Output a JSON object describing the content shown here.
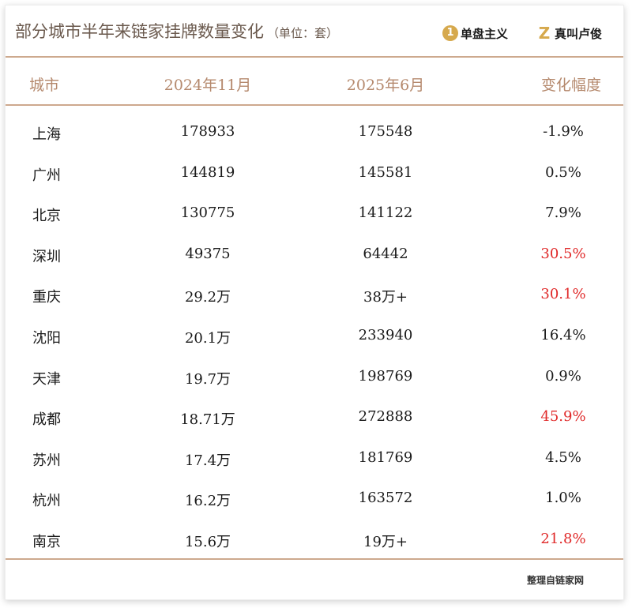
{
  "title": "部分城市半年来链家挂牌数量变化",
  "unit": "（单位：套）",
  "brands": [
    {
      "logo": "1",
      "name": "单盘主义",
      "icon": "single-plate-logo-icon"
    },
    {
      "logo": "Z",
      "name": "真叫卢俊",
      "icon": "z-logo-icon"
    }
  ],
  "columns": [
    "城市",
    "2024年11月",
    "2025年6月",
    "变化幅度"
  ],
  "highlight_color": "#e02a2a",
  "accent_color": "#cda98e",
  "rows": [
    {
      "city": "上海",
      "nov2024": "178933",
      "jun2025": "175548",
      "change": "-1.9%",
      "highlight": false
    },
    {
      "city": "广州",
      "nov2024": "144819",
      "jun2025": "145581",
      "change": "0.5%",
      "highlight": false
    },
    {
      "city": "北京",
      "nov2024": "130775",
      "jun2025": "141122",
      "change": "7.9%",
      "highlight": false
    },
    {
      "city": "深圳",
      "nov2024": "49375",
      "jun2025": "64442",
      "change": "30.5%",
      "highlight": true
    },
    {
      "city": "重庆",
      "nov2024": "29.2万",
      "jun2025": "38万+",
      "change": "30.1%",
      "highlight": true
    },
    {
      "city": "沈阳",
      "nov2024": "20.1万",
      "jun2025": "233940",
      "change": "16.4%",
      "highlight": false
    },
    {
      "city": "天津",
      "nov2024": "19.7万",
      "jun2025": "198769",
      "change": "0.9%",
      "highlight": false
    },
    {
      "city": "成都",
      "nov2024": "18.71万",
      "jun2025": "272888",
      "change": "45.9%",
      "highlight": true
    },
    {
      "city": "苏州",
      "nov2024": "17.4万",
      "jun2025": "181769",
      "change": "4.5%",
      "highlight": false
    },
    {
      "city": "杭州",
      "nov2024": "16.2万",
      "jun2025": "163572",
      "change": "1.0%",
      "highlight": false
    },
    {
      "city": "南京",
      "nov2024": "15.6万",
      "jun2025": "19万+",
      "change": "21.8%",
      "highlight": true
    }
  ],
  "source": "整理自链家网"
}
